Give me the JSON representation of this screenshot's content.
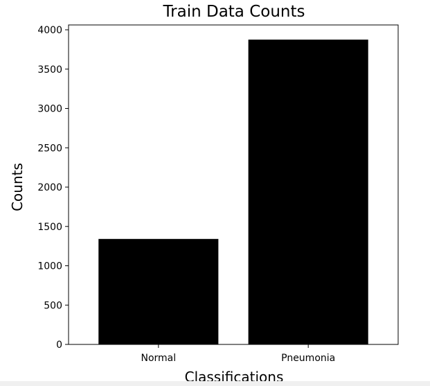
{
  "chart_data": {
    "type": "bar",
    "title": "Train Data Counts",
    "xlabel": "Classifications",
    "ylabel": "Counts",
    "categories": [
      "Normal",
      "Pneumonia"
    ],
    "values": [
      1341,
      3875
    ],
    "ylim": [
      0,
      4000
    ],
    "yticks": [
      0,
      500,
      1000,
      1500,
      2000,
      2500,
      3000,
      3500,
      4000
    ],
    "grid": false,
    "bar_color": "#000000"
  }
}
